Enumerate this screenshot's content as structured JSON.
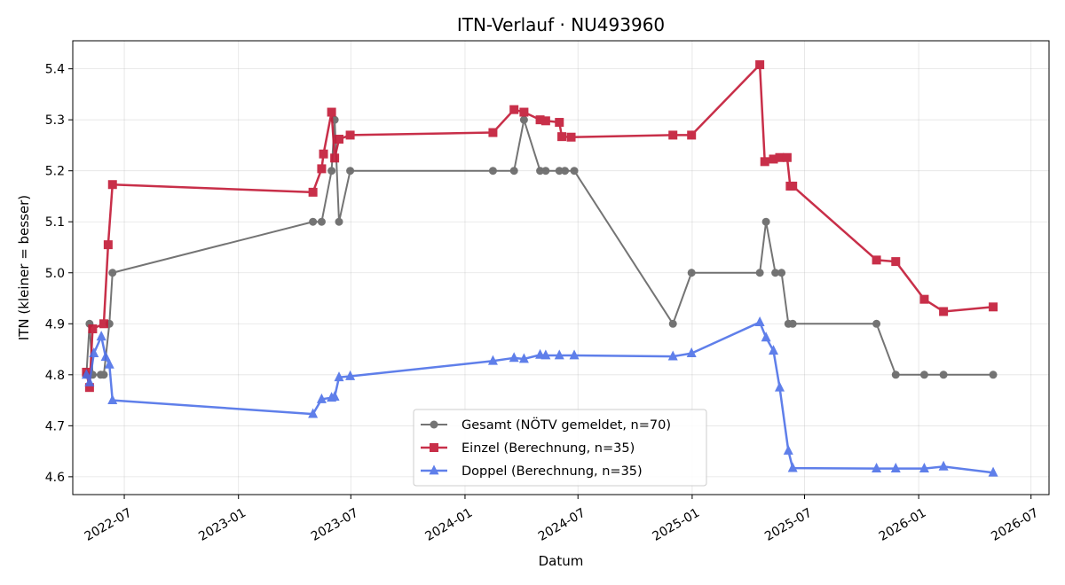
{
  "chart_data": {
    "type": "line",
    "title": "ITN-Verlauf · NU493960",
    "xlabel": "Datum",
    "ylabel": "ITN  (kleiner = besser)",
    "xlim": [
      "2022-04-09",
      "2026-07-30"
    ],
    "ylim": [
      4.565,
      5.455
    ],
    "grid": true,
    "legend_position": "bottom-center",
    "x_ticks": [
      "2022-07-01",
      "2023-01-01",
      "2023-07-01",
      "2024-01-01",
      "2024-07-01",
      "2025-01-01",
      "2025-07-01",
      "2026-01-01",
      "2026-07-01"
    ],
    "x_tick_labels": [
      "2022-07",
      "2023-01",
      "2023-07",
      "2024-01",
      "2024-07",
      "2025-01",
      "2025-07",
      "2026-01",
      "2026-07"
    ],
    "y_ticks": [
      4.6,
      4.7,
      4.8,
      4.9,
      5.0,
      5.1,
      5.2,
      5.3,
      5.4
    ],
    "y_tick_labels": [
      "4.6",
      "4.7",
      "4.8",
      "4.9",
      "5.0",
      "5.1",
      "5.2",
      "5.3",
      "5.4"
    ],
    "series": [
      {
        "name": "Gesamt (NÖTV gemeldet, n=70)",
        "color": "#404040",
        "marker": "circle",
        "x": [
          "2022-05-01",
          "2022-05-06",
          "2022-05-11",
          "2022-05-24",
          "2022-05-29",
          "2022-06-07",
          "2022-06-12",
          "2023-05-01",
          "2023-05-15",
          "2023-05-31",
          "2023-06-05",
          "2023-06-12",
          "2023-06-30",
          "2024-02-15",
          "2024-03-20",
          "2024-04-05",
          "2024-05-01",
          "2024-05-10",
          "2024-06-01",
          "2024-06-10",
          "2024-06-25",
          "2024-12-01",
          "2024-12-31",
          "2025-04-20",
          "2025-04-30",
          "2025-05-15",
          "2025-05-25",
          "2025-06-05",
          "2025-06-12",
          "2025-10-25",
          "2025-11-25",
          "2026-01-10",
          "2026-02-10",
          "2026-05-01"
        ],
        "values": [
          4.8,
          4.9,
          4.8,
          4.8,
          4.8,
          4.9,
          5.0,
          5.1,
          5.1,
          5.2,
          5.3,
          5.1,
          5.2,
          5.2,
          5.2,
          5.3,
          5.2,
          5.2,
          5.2,
          5.2,
          5.2,
          4.9,
          5.0,
          5.0,
          5.1,
          5.0,
          5.0,
          4.9,
          4.9,
          4.9,
          4.8,
          4.8,
          4.8,
          4.8
        ]
      },
      {
        "name": "Einzel (Berechnung, n=35)",
        "color": "#c41e3a",
        "marker": "square",
        "x": [
          "2022-05-01",
          "2022-05-06",
          "2022-05-11",
          "2022-05-29",
          "2022-06-05",
          "2022-06-12",
          "2023-05-01",
          "2023-05-15",
          "2023-05-18",
          "2023-05-31",
          "2023-06-05",
          "2023-06-12",
          "2023-06-30",
          "2024-02-15",
          "2024-03-20",
          "2024-04-05",
          "2024-05-01",
          "2024-05-10",
          "2024-06-01",
          "2024-06-05",
          "2024-06-20",
          "2024-12-01",
          "2024-12-31",
          "2025-04-20",
          "2025-04-28",
          "2025-05-12",
          "2025-05-22",
          "2025-06-03",
          "2025-06-08",
          "2025-06-12",
          "2025-10-25",
          "2025-11-25",
          "2026-01-10",
          "2026-02-10",
          "2026-05-01"
        ],
        "values": [
          4.805,
          4.775,
          4.89,
          4.9,
          5.055,
          5.173,
          5.158,
          5.204,
          5.233,
          5.315,
          5.225,
          5.262,
          5.27,
          5.275,
          5.32,
          5.315,
          5.3,
          5.298,
          5.295,
          5.267,
          5.266,
          5.27,
          5.27,
          5.408,
          5.218,
          5.223,
          5.226,
          5.226,
          5.17,
          5.17,
          5.025,
          5.022,
          4.948,
          4.924,
          4.933
        ]
      },
      {
        "name": "Doppel (Berechnung, n=35)",
        "color": "#4a6ee8",
        "marker": "triangle",
        "x": [
          "2022-05-01",
          "2022-05-06",
          "2022-05-13",
          "2022-05-25",
          "2022-06-01",
          "2022-06-07",
          "2022-06-12",
          "2023-05-01",
          "2023-05-15",
          "2023-05-31",
          "2023-06-05",
          "2023-06-12",
          "2023-06-30",
          "2024-02-15",
          "2024-03-20",
          "2024-04-05",
          "2024-05-01",
          "2024-05-10",
          "2024-06-01",
          "2024-06-25",
          "2024-12-01",
          "2024-12-31",
          "2025-04-20",
          "2025-04-30",
          "2025-05-12",
          "2025-05-22",
          "2025-06-05",
          "2025-06-12",
          "2025-10-25",
          "2025-11-25",
          "2026-01-10",
          "2026-02-10",
          "2026-05-01"
        ],
        "values": [
          4.8,
          4.785,
          4.842,
          4.875,
          4.835,
          4.82,
          4.75,
          4.723,
          4.752,
          4.755,
          4.757,
          4.795,
          4.797,
          4.827,
          4.833,
          4.831,
          4.839,
          4.838,
          4.838,
          4.838,
          4.836,
          4.842,
          4.903,
          4.873,
          4.847,
          4.775,
          4.651,
          4.617,
          4.616,
          4.616,
          4.616,
          4.62,
          4.608
        ]
      }
    ]
  }
}
